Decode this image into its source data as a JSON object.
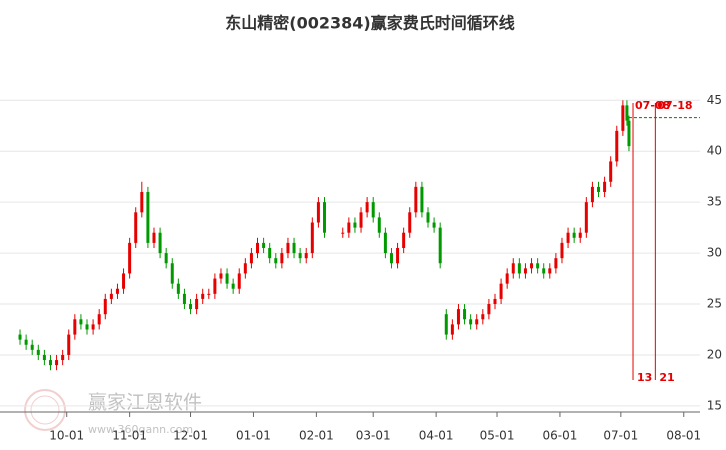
{
  "chart_data": {
    "type": "candlestick",
    "title": "东山精密(002384)赢家费氏时间循环线",
    "x": [
      7,
      10,
      13,
      16,
      19,
      22,
      25,
      28,
      31,
      34,
      37,
      40,
      43,
      46,
      49,
      52,
      55,
      58,
      61,
      64,
      67,
      70,
      73,
      76,
      79,
      82,
      85,
      88,
      91,
      94,
      97,
      100,
      103,
      106,
      109,
      112,
      115,
      118,
      121,
      124,
      127,
      130,
      133,
      136,
      139,
      142,
      145,
      148,
      151,
      154,
      157,
      166,
      169,
      172,
      175,
      178,
      181,
      184,
      187,
      190,
      193,
      196,
      199,
      202,
      205,
      208,
      211,
      214,
      217,
      220,
      223,
      226,
      229,
      232,
      235,
      238,
      241,
      244,
      247,
      250,
      253,
      256,
      259,
      262,
      265,
      268,
      271,
      274,
      277,
      280,
      283,
      286,
      289,
      292,
      295,
      298,
      301,
      304,
      306,
      307
    ],
    "open": [
      22,
      21.5,
      21,
      20.5,
      20,
      19.5,
      19,
      19.5,
      20,
      22,
      23.5,
      23,
      22.5,
      23,
      24,
      25.5,
      26,
      26.5,
      28,
      31,
      34,
      36,
      31,
      32,
      30,
      29,
      27,
      26,
      25,
      24.5,
      25.5,
      26,
      26,
      27.5,
      28,
      27,
      26.5,
      28,
      29,
      30,
      31,
      30.5,
      29.5,
      29,
      30,
      31,
      30,
      29.5,
      30,
      33,
      35,
      32,
      32,
      33,
      32.5,
      34,
      35,
      33.5,
      32,
      30,
      29,
      30.5,
      32,
      34,
      36.5,
      34,
      33,
      32.5,
      24,
      22,
      23,
      24.5,
      23.5,
      23,
      23.5,
      24,
      25,
      25.5,
      27,
      28,
      29,
      28,
      28.5,
      29,
      28.5,
      28,
      28.5,
      29.5,
      31,
      32,
      31.5,
      32,
      35,
      36.5,
      36,
      37,
      39,
      42,
      44.5,
      43
    ],
    "high": [
      22.5,
      22,
      21.5,
      21,
      20.5,
      20,
      20,
      20.5,
      22.5,
      24,
      24,
      23.5,
      23.5,
      24.5,
      26,
      26.5,
      27,
      28.5,
      31.5,
      34.5,
      37,
      36.5,
      32.5,
      32.5,
      30.5,
      29.5,
      27.5,
      26.5,
      25.5,
      26,
      26.5,
      26.5,
      28,
      28.5,
      28.5,
      27.5,
      28.5,
      29.5,
      30.5,
      31.5,
      31.5,
      31,
      30,
      30.5,
      31.5,
      31.5,
      30.5,
      30.5,
      33.5,
      35.5,
      35.5,
      32.5,
      33.5,
      33.5,
      34.5,
      35.5,
      35.5,
      34,
      32.5,
      30.5,
      31,
      32.5,
      34.5,
      37,
      37,
      34.5,
      33.5,
      33,
      24.5,
      23.5,
      25,
      25,
      24,
      24,
      24.5,
      25.5,
      26,
      27.5,
      28.5,
      29.5,
      29.5,
      29,
      29.5,
      29.5,
      29,
      29,
      30,
      31.5,
      32.5,
      32.5,
      32.5,
      35.5,
      37,
      37,
      37.5,
      39.5,
      42.5,
      45,
      45,
      43.5
    ],
    "low": [
      21,
      20.5,
      20,
      19.5,
      19,
      18.5,
      18.5,
      19,
      19.5,
      21.5,
      22.5,
      22,
      22,
      22.5,
      23.5,
      25,
      25.5,
      26,
      27.5,
      30.5,
      33.5,
      30.5,
      30.5,
      29.5,
      28.5,
      26.5,
      25.5,
      24.5,
      24,
      24,
      25,
      25.5,
      25.5,
      27,
      26.5,
      26,
      26,
      27.5,
      28.5,
      29.5,
      30,
      29,
      28.5,
      28.5,
      29.5,
      29.5,
      29,
      29,
      29.5,
      32.5,
      31.5,
      31.5,
      31.5,
      32,
      32,
      33.5,
      33,
      31.5,
      29.5,
      28.5,
      28.5,
      30,
      31.5,
      33.5,
      33.5,
      32.5,
      32,
      28.5,
      21.5,
      21.5,
      22.5,
      23,
      22.5,
      22.5,
      23,
      23.5,
      24.5,
      25,
      26.5,
      27.5,
      27.5,
      27.5,
      28,
      28,
      27.5,
      27.5,
      28,
      29,
      30.5,
      31,
      31,
      31.5,
      34.5,
      35.5,
      35.5,
      36.5,
      38.5,
      41.5,
      42.5,
      40
    ],
    "close": [
      21.5,
      21,
      20.5,
      20,
      19.5,
      19,
      19.5,
      20,
      22,
      23.5,
      23,
      22.5,
      23,
      24,
      25.5,
      26,
      26.5,
      28,
      31,
      34,
      36,
      31,
      32,
      30,
      29,
      27,
      26,
      25,
      24.5,
      25.5,
      26,
      26,
      27.5,
      28,
      27,
      26.5,
      28,
      29,
      30,
      31,
      30.5,
      29.5,
      29,
      30,
      31,
      30,
      29.5,
      30,
      33,
      35,
      32,
      32,
      33,
      32.5,
      34,
      35,
      33.5,
      32,
      30,
      29,
      30.5,
      32,
      34,
      36.5,
      34,
      33,
      32.5,
      29,
      22,
      23,
      24.5,
      23.5,
      23,
      23.5,
      24,
      25,
      25.5,
      27,
      28,
      29,
      28,
      28.5,
      29,
      28.5,
      28,
      28.5,
      29.5,
      31,
      32,
      31.5,
      32,
      35,
      36.5,
      36,
      37,
      39,
      42,
      44.5,
      43,
      40.5
    ],
    "up_color": "#e60000",
    "down_color": "#009a00",
    "xlim": [
      6,
      342
    ],
    "xticks": [
      {
        "value": 30,
        "label": "10-01"
      },
      {
        "value": 61,
        "label": "11-01"
      },
      {
        "value": 91,
        "label": "12-01"
      },
      {
        "value": 122,
        "label": "01-01"
      },
      {
        "value": 153,
        "label": "02-01"
      },
      {
        "value": 181,
        "label": "03-01"
      },
      {
        "value": 212,
        "label": "04-01"
      },
      {
        "value": 242,
        "label": "05-01"
      },
      {
        "value": 273,
        "label": "06-01"
      },
      {
        "value": 303,
        "label": "07-01"
      },
      {
        "value": 334,
        "label": "08-01"
      }
    ],
    "ylim": [
      14.4,
      46.5
    ],
    "yticks": [
      15,
      20,
      25,
      30,
      35,
      40,
      45
    ],
    "grid": true,
    "hline": {
      "value": 43.3,
      "color": "#008000"
    },
    "cycle_lines": [
      {
        "x": 309,
        "label": "07-08",
        "count": "13"
      },
      {
        "x": 320,
        "label": "07-18",
        "count": "21"
      }
    ],
    "cycle_color": "#e60000",
    "watermark": {
      "name": "赢家江恩软件",
      "url": "www.360gann.com"
    }
  }
}
